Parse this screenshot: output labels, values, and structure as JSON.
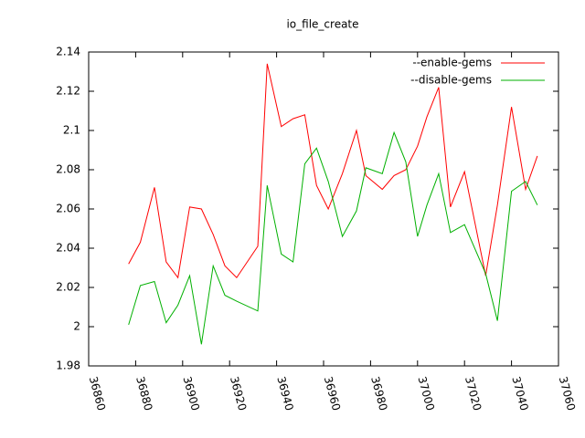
{
  "chart_data": {
    "type": "line",
    "title": "io_file_create",
    "x": [
      36877,
      36882,
      36888,
      36893,
      36898,
      36903,
      36908,
      36913,
      36918,
      36923,
      36932,
      36936,
      36942,
      36947,
      36952,
      36957,
      36962,
      36968,
      36974,
      36978,
      36985,
      36990,
      36995,
      37000,
      37004,
      37009,
      37014,
      37020,
      37029,
      37034,
      37040,
      37046,
      37051
    ],
    "series": [
      {
        "name": "--enable-gems",
        "color": "#ff0000",
        "values": [
          2.032,
          2.043,
          2.071,
          2.033,
          2.025,
          2.061,
          2.06,
          2.047,
          2.031,
          2.025,
          2.041,
          2.134,
          2.102,
          2.106,
          2.108,
          2.072,
          2.06,
          2.078,
          2.1,
          2.077,
          2.07,
          2.077,
          2.08,
          2.092,
          2.107,
          2.122,
          2.061,
          2.079,
          2.026,
          2.062,
          2.112,
          2.07,
          2.087
        ]
      },
      {
        "name": "--disable-gems",
        "color": "#00b000",
        "values": [
          2.001,
          2.021,
          2.023,
          2.002,
          2.011,
          2.026,
          1.991,
          2.031,
          2.016,
          2.013,
          2.008,
          2.072,
          2.037,
          2.033,
          2.083,
          2.091,
          2.074,
          2.046,
          2.059,
          2.081,
          2.078,
          2.099,
          2.084,
          2.046,
          2.062,
          2.078,
          2.048,
          2.052,
          2.027,
          2.003,
          2.069,
          2.074,
          2.062
        ]
      }
    ],
    "xlim": [
      36860,
      37060
    ],
    "xticks": [
      36860,
      36880,
      36900,
      36920,
      36940,
      36960,
      36980,
      37000,
      37020,
      37040,
      37060
    ],
    "ylim": [
      1.98,
      2.14
    ],
    "yticks": [
      1.98,
      2,
      2.02,
      2.04,
      2.06,
      2.08,
      2.1,
      2.12,
      2.14
    ],
    "legend": "top-right"
  }
}
